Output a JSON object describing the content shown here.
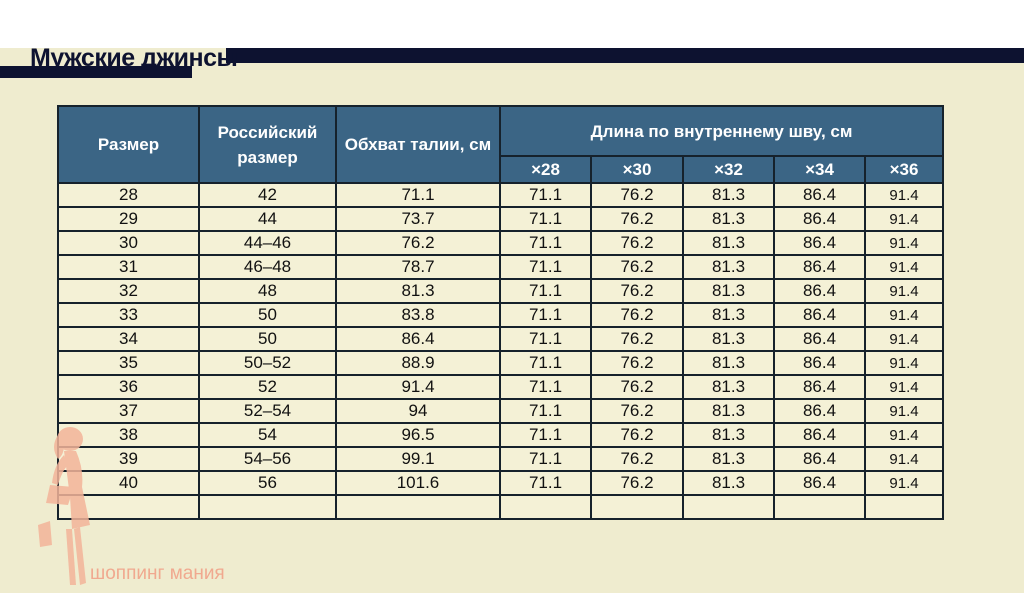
{
  "title": "Мужские джинсы",
  "table": {
    "headers": {
      "size": "Размер",
      "russian_size": "Российский размер",
      "waist": "Обхват талии, см",
      "inseam": "Длина по внутреннему шву, см",
      "inseam_sub": [
        "×28",
        "×30",
        "×32",
        "×34",
        "×36"
      ]
    },
    "rows": [
      [
        "28",
        "42",
        "71.1",
        "71.1",
        "76.2",
        "81.3",
        "86.4",
        "91.4"
      ],
      [
        "29",
        "44",
        "73.7",
        "71.1",
        "76.2",
        "81.3",
        "86.4",
        "91.4"
      ],
      [
        "30",
        "44–46",
        "76.2",
        "71.1",
        "76.2",
        "81.3",
        "86.4",
        "91.4"
      ],
      [
        "31",
        "46–48",
        "78.7",
        "71.1",
        "76.2",
        "81.3",
        "86.4",
        "91.4"
      ],
      [
        "32",
        "48",
        "81.3",
        "71.1",
        "76.2",
        "81.3",
        "86.4",
        "91.4"
      ],
      [
        "33",
        "50",
        "83.8",
        "71.1",
        "76.2",
        "81.3",
        "86.4",
        "91.4"
      ],
      [
        "34",
        "50",
        "86.4",
        "71.1",
        "76.2",
        "81.3",
        "86.4",
        "91.4"
      ],
      [
        "35",
        "50–52",
        "88.9",
        "71.1",
        "76.2",
        "81.3",
        "86.4",
        "91.4"
      ],
      [
        "36",
        "52",
        "91.4",
        "71.1",
        "76.2",
        "81.3",
        "86.4",
        "91.4"
      ],
      [
        "37",
        "52–54",
        "94",
        "71.1",
        "76.2",
        "81.3",
        "86.4",
        "91.4"
      ],
      [
        "38",
        "54",
        "96.5",
        "71.1",
        "76.2",
        "81.3",
        "86.4",
        "91.4"
      ],
      [
        "39",
        "54–56",
        "99.1",
        "71.1",
        "76.2",
        "81.3",
        "86.4",
        "91.4"
      ],
      [
        "40",
        "56",
        "101.6",
        "71.1",
        "76.2",
        "81.3",
        "86.4",
        "91.4"
      ],
      [
        "",
        "",
        "",
        "",
        "",
        "",
        "",
        ""
      ]
    ]
  },
  "watermark": "шоппинг мания",
  "colors": {
    "background": "#efeccf",
    "header": "#3b6585",
    "cell": "#f4f1d6",
    "border": "#16222c",
    "navy": "#0d1230",
    "watermark": "#f0a98f"
  },
  "icons": {
    "logo": "woman-silhouette-icon"
  }
}
